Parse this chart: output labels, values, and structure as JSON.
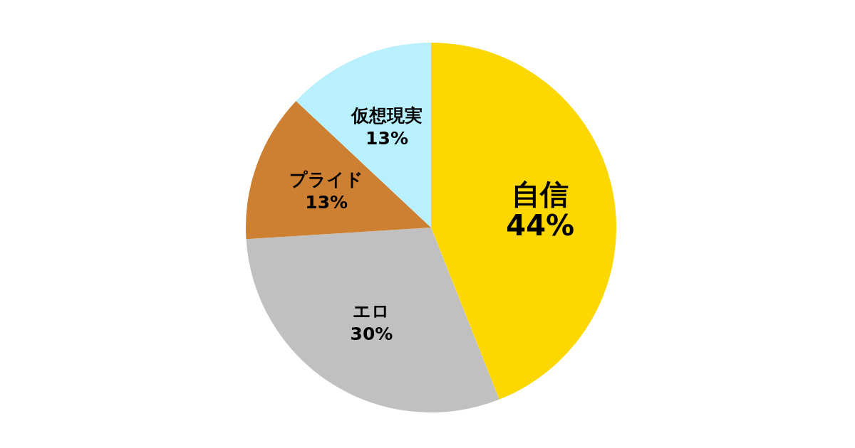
{
  "chart_data": {
    "type": "pie",
    "categories": [
      "自信",
      "エロ",
      "プライド",
      "仮想現実"
    ],
    "values": [
      44,
      30,
      13,
      13
    ],
    "colors": [
      "#fdd700",
      "#c0c0c0",
      "#cd7f32",
      "#b9f0fe"
    ],
    "value_labels": [
      "44%",
      "30%",
      "13%",
      "13%"
    ]
  }
}
